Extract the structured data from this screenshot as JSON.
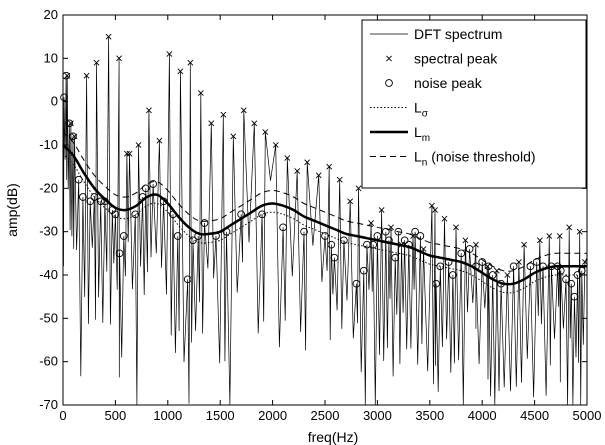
{
  "chart_data": {
    "type": "line",
    "title": "",
    "xlabel": "freq(Hz)",
    "ylabel": "amp(dB)",
    "xlim": [
      0,
      5000
    ],
    "ylim": [
      -70,
      20
    ],
    "xticks": [
      0,
      500,
      1000,
      1500,
      2000,
      2500,
      3000,
      3500,
      4000,
      4500,
      5000
    ],
    "yticks": [
      -70,
      -60,
      -50,
      -40,
      -30,
      -20,
      -10,
      0,
      10,
      20
    ],
    "grid": false,
    "legend_position": "top-right",
    "legend": [
      {
        "label": "DFT spectrum",
        "style": "thin-solid"
      },
      {
        "label": "spectral peak",
        "style": "x-marker"
      },
      {
        "label": "noise peak",
        "style": "circle-marker"
      },
      {
        "label": "L",
        "sub": "σ",
        "tail": "",
        "style": "dotted"
      },
      {
        "label": "L",
        "sub": "m",
        "tail": "",
        "style": "thick-solid"
      },
      {
        "label": "L",
        "sub": "n",
        "tail": " (noise threshold)",
        "style": "dashed"
      }
    ],
    "spectral_peaks": [
      {
        "x": 40,
        "y": 6
      },
      {
        "x": 75,
        "y": -5
      },
      {
        "x": 110,
        "y": -8
      },
      {
        "x": 225,
        "y": 6
      },
      {
        "x": 320,
        "y": 9
      },
      {
        "x": 435,
        "y": 15
      },
      {
        "x": 535,
        "y": 10
      },
      {
        "x": 610,
        "y": -12
      },
      {
        "x": 635,
        "y": -12
      },
      {
        "x": 720,
        "y": -10
      },
      {
        "x": 820,
        "y": -2
      },
      {
        "x": 920,
        "y": -9
      },
      {
        "x": 1015,
        "y": 11
      },
      {
        "x": 1120,
        "y": 7
      },
      {
        "x": 1215,
        "y": 9
      },
      {
        "x": 1315,
        "y": 2
      },
      {
        "x": 1415,
        "y": -5
      },
      {
        "x": 1530,
        "y": -3
      },
      {
        "x": 1625,
        "y": -8
      },
      {
        "x": 1725,
        "y": -2
      },
      {
        "x": 1825,
        "y": -5
      },
      {
        "x": 1930,
        "y": -7
      },
      {
        "x": 2030,
        "y": -10
      },
      {
        "x": 2140,
        "y": -13
      },
      {
        "x": 2235,
        "y": -16
      },
      {
        "x": 2330,
        "y": -14
      },
      {
        "x": 2440,
        "y": -17
      },
      {
        "x": 2540,
        "y": -15
      },
      {
        "x": 2640,
        "y": -18
      },
      {
        "x": 2740,
        "y": -23
      },
      {
        "x": 2820,
        "y": -20
      },
      {
        "x": 2940,
        "y": -28
      },
      {
        "x": 3040,
        "y": -25
      },
      {
        "x": 3130,
        "y": -29
      },
      {
        "x": 3230,
        "y": -33
      },
      {
        "x": 3340,
        "y": -31
      },
      {
        "x": 3440,
        "y": -34
      },
      {
        "x": 3520,
        "y": -24
      },
      {
        "x": 3550,
        "y": -25
      },
      {
        "x": 3640,
        "y": -27
      },
      {
        "x": 3750,
        "y": -29
      },
      {
        "x": 3840,
        "y": -32
      },
      {
        "x": 3940,
        "y": -33
      },
      {
        "x": 4050,
        "y": -38
      },
      {
        "x": 4140,
        "y": -39
      },
      {
        "x": 4240,
        "y": -40
      },
      {
        "x": 4350,
        "y": -37
      },
      {
        "x": 4400,
        "y": -33
      },
      {
        "x": 4550,
        "y": -32
      },
      {
        "x": 4640,
        "y": -31
      },
      {
        "x": 4740,
        "y": -31
      },
      {
        "x": 4830,
        "y": -29
      },
      {
        "x": 4930,
        "y": -30
      },
      {
        "x": 4980,
        "y": -37
      }
    ],
    "noise_peaks": [
      {
        "x": 10,
        "y": 1
      },
      {
        "x": 30,
        "y": 6
      },
      {
        "x": 60,
        "y": -5
      },
      {
        "x": 95,
        "y": -8
      },
      {
        "x": 150,
        "y": -18
      },
      {
        "x": 190,
        "y": -22
      },
      {
        "x": 260,
        "y": -23
      },
      {
        "x": 300,
        "y": -22
      },
      {
        "x": 360,
        "y": -23
      },
      {
        "x": 400,
        "y": -23
      },
      {
        "x": 470,
        "y": -25
      },
      {
        "x": 500,
        "y": -26
      },
      {
        "x": 540,
        "y": -35
      },
      {
        "x": 580,
        "y": -31
      },
      {
        "x": 690,
        "y": -26
      },
      {
        "x": 760,
        "y": -22
      },
      {
        "x": 790,
        "y": -20
      },
      {
        "x": 860,
        "y": -19
      },
      {
        "x": 960,
        "y": -23
      },
      {
        "x": 1050,
        "y": -26
      },
      {
        "x": 1095,
        "y": -31
      },
      {
        "x": 1190,
        "y": -41
      },
      {
        "x": 1240,
        "y": -32
      },
      {
        "x": 1290,
        "y": -31
      },
      {
        "x": 1350,
        "y": -28
      },
      {
        "x": 1460,
        "y": -31
      },
      {
        "x": 1560,
        "y": -30
      },
      {
        "x": 1700,
        "y": -26
      },
      {
        "x": 1900,
        "y": -26
      },
      {
        "x": 2100,
        "y": -29
      },
      {
        "x": 2300,
        "y": -30
      },
      {
        "x": 2500,
        "y": -31
      },
      {
        "x": 2560,
        "y": -33
      },
      {
        "x": 2590,
        "y": -36
      },
      {
        "x": 2680,
        "y": -32
      },
      {
        "x": 2800,
        "y": -42
      },
      {
        "x": 2870,
        "y": -39
      },
      {
        "x": 2900,
        "y": -33
      },
      {
        "x": 2960,
        "y": -33
      },
      {
        "x": 3000,
        "y": -31
      },
      {
        "x": 3080,
        "y": -30
      },
      {
        "x": 3110,
        "y": -32
      },
      {
        "x": 3170,
        "y": -36
      },
      {
        "x": 3200,
        "y": -30
      },
      {
        "x": 3260,
        "y": -32
      },
      {
        "x": 3300,
        "y": -33
      },
      {
        "x": 3360,
        "y": -30
      },
      {
        "x": 3410,
        "y": -31
      },
      {
        "x": 3560,
        "y": -42
      },
      {
        "x": 3600,
        "y": -38
      },
      {
        "x": 3680,
        "y": -37
      },
      {
        "x": 3720,
        "y": -40
      },
      {
        "x": 3800,
        "y": -35
      },
      {
        "x": 3880,
        "y": -34
      },
      {
        "x": 3940,
        "y": -38
      },
      {
        "x": 4000,
        "y": -37
      },
      {
        "x": 4060,
        "y": -38
      },
      {
        "x": 4100,
        "y": -40
      },
      {
        "x": 4180,
        "y": -42
      },
      {
        "x": 4300,
        "y": -38
      },
      {
        "x": 4460,
        "y": -38
      },
      {
        "x": 4520,
        "y": -37
      },
      {
        "x": 4580,
        "y": -38
      },
      {
        "x": 4660,
        "y": -38
      },
      {
        "x": 4720,
        "y": -38
      },
      {
        "x": 4750,
        "y": -39
      },
      {
        "x": 4800,
        "y": -41
      },
      {
        "x": 4850,
        "y": -42
      },
      {
        "x": 4880,
        "y": -45
      },
      {
        "x": 4910,
        "y": -40
      },
      {
        "x": 4950,
        "y": -39
      }
    ],
    "series": [
      {
        "name": "Lm",
        "style": "thick-solid",
        "x": [
          0,
          100,
          200,
          300,
          400,
          500,
          600,
          700,
          800,
          900,
          1000,
          1100,
          1200,
          1300,
          1400,
          1500,
          1600,
          1700,
          1800,
          1900,
          2000,
          2100,
          2200,
          2300,
          2400,
          2500,
          2600,
          2700,
          2800,
          2900,
          3000,
          3100,
          3200,
          3300,
          3400,
          3500,
          3600,
          3700,
          3800,
          3900,
          4000,
          4100,
          4200,
          4300,
          4400,
          4500,
          4600,
          4700,
          4800,
          4900,
          5000
        ],
        "values": [
          -10,
          -12.5,
          -16.5,
          -20,
          -22.5,
          -24.5,
          -25,
          -24,
          -22,
          -21.5,
          -23.5,
          -26.5,
          -29,
          -30.5,
          -30.5,
          -30,
          -28.5,
          -27,
          -25.5,
          -24,
          -23.5,
          -24,
          -25,
          -26.5,
          -27.5,
          -28.5,
          -29.5,
          -30.5,
          -31,
          -31.5,
          -32,
          -32.5,
          -33,
          -33.5,
          -34.5,
          -35.5,
          -36,
          -36.5,
          -37,
          -38,
          -39.5,
          -41,
          -42,
          -42,
          -41,
          -39.5,
          -38.5,
          -38,
          -38,
          -38,
          -38
        ]
      },
      {
        "name": "Lσ",
        "style": "dotted",
        "x": [
          0,
          100,
          200,
          300,
          400,
          500,
          600,
          700,
          800,
          900,
          1000,
          1100,
          1200,
          1300,
          1400,
          1500,
          1600,
          1700,
          1800,
          1900,
          2000,
          2100,
          2200,
          2300,
          2400,
          2500,
          2600,
          2700,
          2800,
          2900,
          3000,
          3100,
          3200,
          3300,
          3400,
          3500,
          3600,
          3700,
          3800,
          3900,
          4000,
          4100,
          4200,
          4300,
          4400,
          4500,
          4600,
          4700,
          4800,
          4900,
          5000
        ],
        "values": [
          -12,
          -14.5,
          -18.5,
          -22,
          -24.5,
          -26.5,
          -27,
          -26,
          -24,
          -23.5,
          -25.5,
          -28.5,
          -31,
          -32.5,
          -32.5,
          -32,
          -30.5,
          -29,
          -27.5,
          -26,
          -25.5,
          -26,
          -27,
          -28.5,
          -29.5,
          -30.5,
          -31.5,
          -32.5,
          -33,
          -33.5,
          -34,
          -34.5,
          -35,
          -35.5,
          -36.5,
          -37.5,
          -38,
          -38.5,
          -39,
          -40,
          -41.5,
          -43,
          -44,
          -44,
          -43,
          -41.5,
          -40.5,
          -40,
          -40,
          -40,
          -40
        ]
      },
      {
        "name": "Ln",
        "style": "dashed",
        "x": [
          0,
          100,
          200,
          300,
          400,
          500,
          600,
          700,
          800,
          900,
          1000,
          1100,
          1200,
          1300,
          1400,
          1500,
          1600,
          1700,
          1800,
          1900,
          2000,
          2100,
          2200,
          2300,
          2400,
          2500,
          2600,
          2700,
          2800,
          2900,
          3000,
          3100,
          3200,
          3300,
          3400,
          3500,
          3600,
          3700,
          3800,
          3900,
          4000,
          4100,
          4200,
          4300,
          4400,
          4500,
          4600,
          4700,
          4800,
          4900,
          5000
        ],
        "values": [
          -7,
          -9.5,
          -13.5,
          -17,
          -19.5,
          -21.5,
          -22,
          -21,
          -19,
          -18.5,
          -20.5,
          -23.5,
          -26,
          -27.5,
          -27.5,
          -27,
          -25.5,
          -24,
          -22.5,
          -21,
          -20.5,
          -21,
          -22,
          -23.5,
          -24.5,
          -25.5,
          -26.5,
          -27.5,
          -28,
          -28.5,
          -29,
          -29.5,
          -30,
          -30.5,
          -31.5,
          -32.5,
          -33,
          -33.5,
          -34,
          -35,
          -36.5,
          -38,
          -39,
          -39,
          -38,
          -36.5,
          -35.5,
          -35,
          -35,
          -35,
          -35
        ]
      }
    ]
  }
}
